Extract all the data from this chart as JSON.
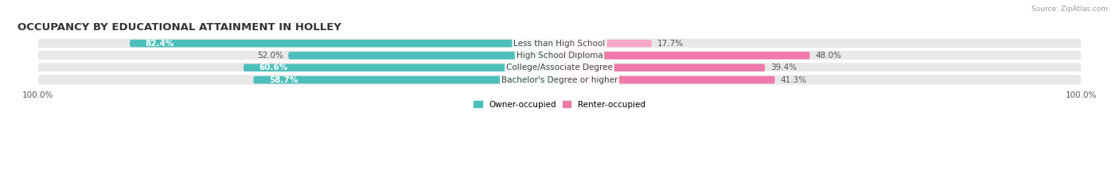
{
  "title": "OCCUPANCY BY EDUCATIONAL ATTAINMENT IN HOLLEY",
  "source": "Source: ZipAtlas.com",
  "categories": [
    "Less than High School",
    "High School Diploma",
    "College/Associate Degree",
    "Bachelor's Degree or higher"
  ],
  "owner_values": [
    82.4,
    52.0,
    60.6,
    58.7
  ],
  "renter_values": [
    17.7,
    48.0,
    39.4,
    41.3
  ],
  "owner_color": "#4dbfbb",
  "renter_color": "#f07aaa",
  "renter_color_light": "#f5aac8",
  "owner_label": "Owner-occupied",
  "renter_label": "Renter-occupied",
  "background_color": "#ffffff",
  "bar_row_bg": "#e8e8e8",
  "title_fontsize": 9.5,
  "label_fontsize": 7.5,
  "value_fontsize": 7.5,
  "source_fontsize": 6.5,
  "figsize": [
    14.06,
    2.33
  ],
  "dpi": 100
}
